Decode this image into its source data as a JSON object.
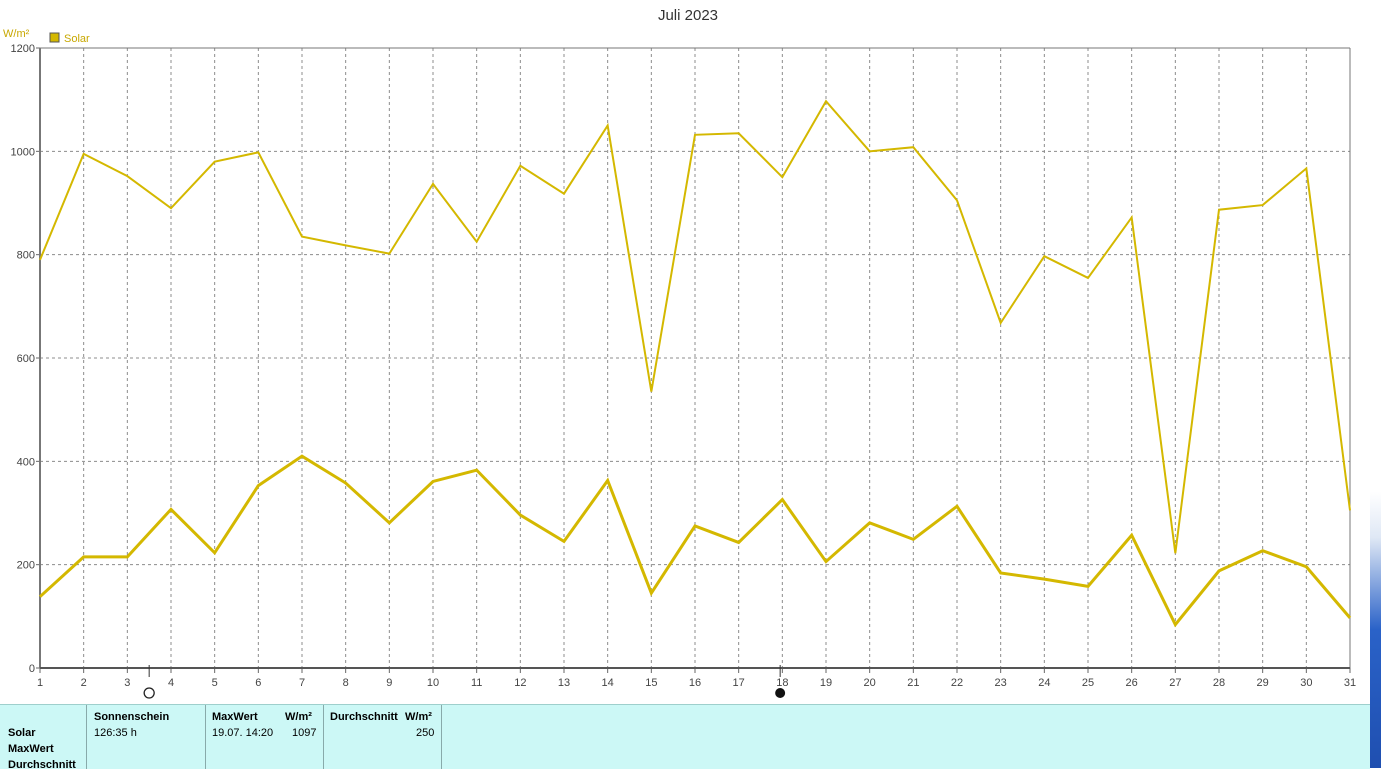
{
  "title": "Juli 2023",
  "y_unit": "W/m²",
  "legend_label": "Solar",
  "moon_phases": [
    {
      "day": 3.5,
      "phase": "full-moon",
      "label": ""
    },
    {
      "day": 17.95,
      "phase": "new-moon",
      "label": ""
    }
  ],
  "colors": {
    "series": "#d4b800",
    "grid": "#8c8c8c",
    "summary_bg": "#ccf8f6"
  },
  "chart_data": {
    "type": "line",
    "title": "Juli 2023",
    "ylabel": "W/m²",
    "xlabel": "",
    "x": [
      1,
      2,
      3,
      4,
      5,
      6,
      7,
      8,
      9,
      10,
      11,
      12,
      13,
      14,
      15,
      16,
      17,
      18,
      19,
      20,
      21,
      22,
      23,
      24,
      25,
      26,
      27,
      28,
      29,
      30,
      31
    ],
    "x_ticks": [
      "1",
      "2",
      "3",
      "4",
      "5",
      "6",
      "7",
      "8",
      "9",
      "10",
      "11",
      "12",
      "13",
      "14",
      "15",
      "16",
      "17",
      "18",
      "19",
      "20",
      "21",
      "22",
      "23",
      "24",
      "25",
      "26",
      "27",
      "28",
      "29",
      "30",
      "31"
    ],
    "y_ticks": [
      "0",
      "200",
      "400",
      "600",
      "800",
      "1000",
      "1200"
    ],
    "ylim": [
      0,
      1200
    ],
    "xlim": [
      1,
      31
    ],
    "grid": true,
    "legend_position": "top-left",
    "series": [
      {
        "name": "Solar",
        "values": [
          790,
          995,
          952,
          890,
          980,
          998,
          835,
          818,
          802,
          937,
          825,
          972,
          918,
          1050,
          535,
          1032,
          1035,
          950,
          1097,
          1000,
          1008,
          905,
          668,
          797,
          755,
          872,
          222,
          887,
          896,
          967,
          305
        ]
      },
      {
        "name": "",
        "values": [
          138,
          215,
          215,
          307,
          223,
          353,
          410,
          358,
          281,
          361,
          383,
          296,
          245,
          363,
          145,
          275,
          243,
          326,
          206,
          281,
          249,
          313,
          184,
          172,
          158,
          257,
          84,
          188,
          227,
          196,
          97
        ]
      }
    ]
  },
  "summary": {
    "row_labels": [
      "Solar",
      "MaxWert",
      "Durchschnitt"
    ],
    "sunshine_header": "Sonnenschein",
    "sunshine_value": "126:35 h",
    "max_header": "MaxWert",
    "max_unit": "W/m²",
    "max_datetime": "19.07.  14:20",
    "max_value": "1097",
    "avg_header": "Durchschnitt",
    "avg_unit": "W/m²",
    "avg_value": "250"
  }
}
